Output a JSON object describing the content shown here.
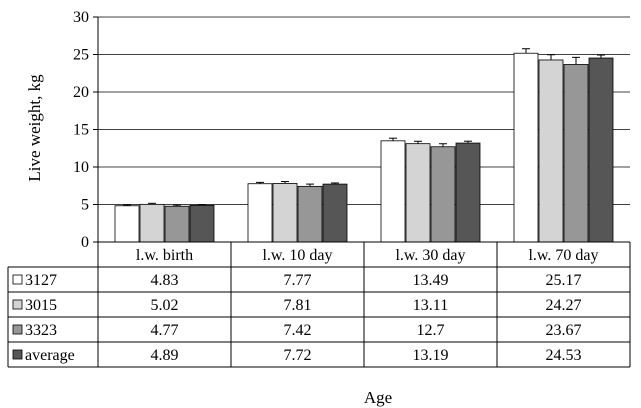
{
  "chart_data": {
    "type": "bar",
    "ylabel": "Live weight, kg",
    "xlabel": "Age",
    "ylim": [
      0,
      30
    ],
    "yticks": [
      0,
      5,
      10,
      15,
      20,
      25,
      30
    ],
    "grid": true,
    "categories": [
      "l.w. birth",
      "l.w. 10 day",
      "l.w. 30 day",
      "l.w. 70 day"
    ],
    "series": [
      {
        "name": "3127",
        "color": "#ffffff",
        "values": [
          4.83,
          7.77,
          13.49,
          25.17
        ],
        "labels": [
          "4.83",
          "7.77",
          "13.49",
          "25.17"
        ],
        "errors": [
          0.12,
          0.18,
          0.35,
          0.6
        ]
      },
      {
        "name": "3015",
        "color": "#d4d4d4",
        "values": [
          5.02,
          7.81,
          13.11,
          24.27
        ],
        "labels": [
          "5.02",
          "7.81",
          "13.11",
          "24.27"
        ],
        "errors": [
          0.14,
          0.25,
          0.32,
          0.7
        ]
      },
      {
        "name": "3323",
        "color": "#979797",
        "values": [
          4.77,
          7.42,
          12.7,
          23.67
        ],
        "labels": [
          "4.77",
          "7.42",
          "12.7",
          "23.67"
        ],
        "errors": [
          0.16,
          0.3,
          0.4,
          0.95
        ]
      },
      {
        "name": "average",
        "color": "#565656",
        "values": [
          4.89,
          7.72,
          13.19,
          24.53
        ],
        "labels": [
          "4.89",
          "7.72",
          "13.19",
          "24.53"
        ],
        "errors": [
          0.09,
          0.15,
          0.25,
          0.4
        ]
      }
    ]
  }
}
